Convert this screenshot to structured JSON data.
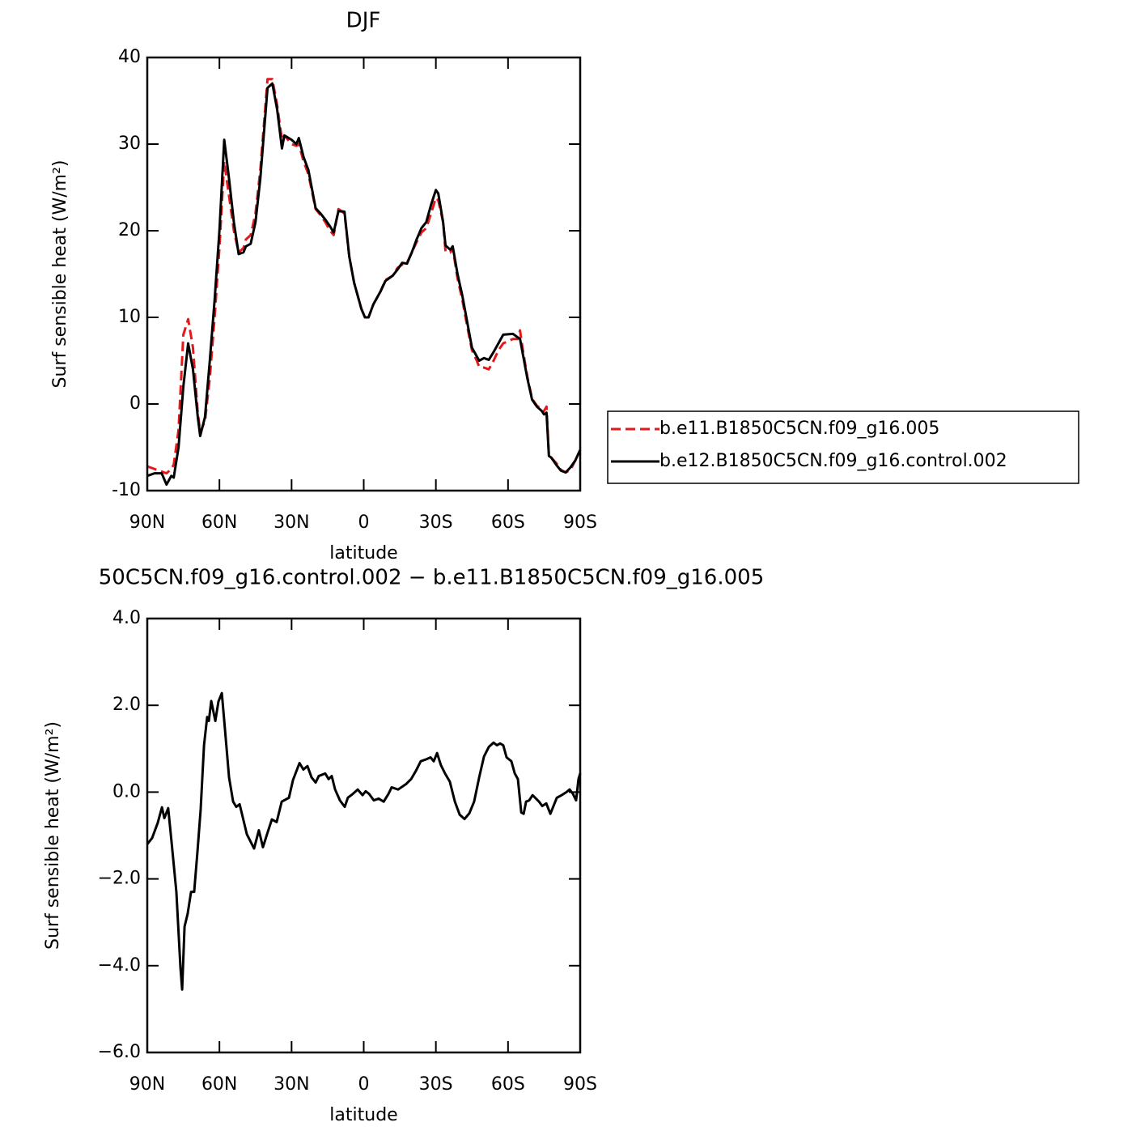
{
  "chart_data": [
    {
      "type": "line",
      "title": "DJF",
      "x_label": "latitude",
      "y_label": "Surf sensible heat (W/m²)",
      "xlim": [
        90,
        -90
      ],
      "xticks": [
        {
          "value": 90,
          "label": "90N"
        },
        {
          "value": 60,
          "label": "60N"
        },
        {
          "value": 30,
          "label": "30N"
        },
        0,
        {
          "value": -30,
          "label": "30S"
        },
        {
          "value": -60,
          "label": "60S"
        },
        {
          "value": -90,
          "label": "90S"
        }
      ],
      "ylim": [
        -10,
        40
      ],
      "yticks": [
        -10,
        0,
        10,
        20,
        30,
        40
      ],
      "legend": "right",
      "x": [
        90,
        87,
        84,
        82,
        80,
        79,
        77,
        75,
        73,
        71,
        69,
        68,
        66,
        64,
        62,
        60,
        58,
        56,
        54,
        52,
        50,
        49,
        47,
        45,
        43,
        41,
        40,
        38,
        36,
        34,
        33,
        30,
        28,
        27,
        25,
        23,
        20,
        18,
        16,
        14,
        12.5,
        10.5,
        8,
        6,
        4,
        3,
        1,
        -0.5,
        -2,
        -4,
        -7,
        -9,
        -12,
        -14,
        -16,
        -18,
        -20,
        -22,
        -24,
        -26,
        -28,
        -30,
        -31,
        -33,
        -34,
        -36,
        -37,
        -39,
        -41,
        -43,
        -45,
        -47,
        -48,
        -50,
        -52,
        -54,
        -56,
        -58,
        -62,
        -64,
        -65,
        -66,
        -68,
        -70,
        -72,
        -74,
        -75,
        -76,
        -77,
        -78,
        -80,
        -82,
        -84,
        -86,
        -88,
        -90
      ],
      "series": [
        {
          "name": "b.e11.B1850C5CN.f09_g16.005",
          "color": "#e31a1c",
          "dash": "dashed",
          "values": [
            -7.2,
            -7.5,
            -7.8,
            -8.0,
            -7.5,
            -7.0,
            -3,
            8,
            9.8,
            6.5,
            -1,
            -3.2,
            -2,
            3,
            10,
            18,
            28,
            24,
            20,
            17.5,
            18,
            19,
            19.5,
            22,
            27,
            34,
            37.5,
            37.5,
            34.5,
            30.5,
            31,
            30,
            29.8,
            30,
            28,
            26.5,
            22.5,
            21.8,
            21,
            20,
            19.5,
            22.5,
            22,
            17,
            14,
            13,
            11,
            10,
            10,
            11.5,
            13,
            14.3,
            14.8,
            15.7,
            16.1,
            16.3,
            17.5,
            18.7,
            19.8,
            20.3,
            22,
            23.8,
            23.5,
            21,
            17.6,
            17.5,
            18,
            14.5,
            12,
            9,
            6.2,
            5,
            4.3,
            4.2,
            4.0,
            5,
            6.2,
            7,
            7.5,
            7.5,
            8.5,
            6.5,
            3.2,
            0.6,
            -0.2,
            -0.6,
            -0.8,
            -0.3,
            -6,
            -6.2,
            -6.8,
            -7.6,
            -7.9,
            -7.6,
            -6.5,
            -5.3
          ]
        },
        {
          "name": "b.e12.B1850C5CN.f09_g16.control.002",
          "color": "#000000",
          "dash": "solid",
          "values": [
            -8.3,
            -8.0,
            -8.0,
            -9.3,
            -8.3,
            -8.5,
            -5,
            2,
            7,
            4,
            -1.5,
            -3.7,
            -1.5,
            5,
            12,
            20,
            30.5,
            26,
            21,
            17.3,
            17.5,
            18.2,
            18.5,
            21,
            26,
            33,
            36.5,
            37,
            34,
            29.5,
            31,
            30.5,
            30,
            30.7,
            28.5,
            27,
            22.6,
            22,
            21.3,
            20.5,
            19.8,
            22.3,
            22.2,
            17,
            14,
            13,
            11,
            10,
            10,
            11.5,
            13,
            14.2,
            14.8,
            15.5,
            16.3,
            16.2,
            17.5,
            19,
            20.3,
            21,
            23,
            24.7,
            24.3,
            21,
            18.3,
            17.8,
            18.2,
            15,
            12.5,
            9.5,
            6.5,
            5.5,
            5,
            5.3,
            5.1,
            6,
            7,
            8,
            8.1,
            7.7,
            7.5,
            6,
            3,
            0.5,
            -0.3,
            -0.8,
            -1.2,
            -1.0,
            -6,
            -6.2,
            -7,
            -7.7,
            -7.9,
            -7.3,
            -6.5,
            -5.3
          ]
        }
      ]
    },
    {
      "type": "line",
      "title": "50C5CN.f09_g16.control.002 − b.e11.B1850C5CN.f09_g16.005",
      "x_label": "latitude",
      "y_label": "Surf sensible heat (W/m²)",
      "xlim": [
        90,
        -90
      ],
      "xticks": [
        {
          "value": 90,
          "label": "90N"
        },
        {
          "value": 60,
          "label": "60N"
        },
        {
          "value": 30,
          "label": "30N"
        },
        0,
        {
          "value": -30,
          "label": "30S"
        },
        {
          "value": -60,
          "label": "60S"
        },
        {
          "value": -90,
          "label": "90S"
        }
      ],
      "ylim": [
        -6,
        4
      ],
      "yticks": [
        {
          "value": -6,
          "label": "−6.0"
        },
        {
          "value": -4,
          "label": "−4.0"
        },
        {
          "value": -2,
          "label": "−2.0"
        },
        {
          "value": 0,
          "label": "0.0"
        },
        {
          "value": 2,
          "label": "2.0"
        },
        {
          "value": 4,
          "label": "4.0"
        }
      ],
      "x": [
        90,
        88,
        85.6,
        83.9,
        82.9,
        81.3,
        79.9,
        77.9,
        76.2,
        75.5,
        74.5,
        73.2,
        71.8,
        70.5,
        69.1,
        67.8,
        66.4,
        65.1,
        64.4,
        63.4,
        61.7,
        60.4,
        59.0,
        57.7,
        56.0,
        54.3,
        53.0,
        51.6,
        48.6,
        45.6,
        43.6,
        41.9,
        40.2,
        38.2,
        36.2,
        34.1,
        31.1,
        29.4,
        26.7,
        25.1,
        23.4,
        21.7,
        20.0,
        18.7,
        16.0,
        14.6,
        13.3,
        11.9,
        9.9,
        7.9,
        6.6,
        4.5,
        2.5,
        0.5,
        -0.8,
        -2.2,
        -4.2,
        -6.2,
        -8.3,
        -10.3,
        -11.6,
        -14.3,
        -17.7,
        -19.7,
        -21.7,
        -23.7,
        -25.7,
        -27.8,
        -29.1,
        -30.5,
        -32.1,
        -33.8,
        -35.8,
        -37.9,
        -39.9,
        -41.9,
        -43.9,
        -45.9,
        -48.0,
        -50.0,
        -52.0,
        -54.0,
        -55.4,
        -56.7,
        -58.0,
        -59.4,
        -61.4,
        -62.8,
        -64.1,
        -65.5,
        -66.5,
        -67.5,
        -68.8,
        -70.2,
        -72.9,
        -74.2,
        -75.9,
        -77.6,
        -80.3,
        -82.3,
        -84.3,
        -85.6,
        -87.0,
        -88.3,
        -89.3,
        -90
      ],
      "series": [
        {
          "color": "#000000",
          "dash": "solid",
          "values": [
            -1.2,
            -1.06,
            -0.7,
            -0.35,
            -0.6,
            -0.37,
            -1.15,
            -2.3,
            -4.05,
            -4.55,
            -3.1,
            -2.8,
            -2.3,
            -2.3,
            -1.35,
            -0.4,
            1.08,
            1.73,
            1.64,
            2.1,
            1.64,
            2.09,
            2.28,
            1.45,
            0.34,
            -0.22,
            -0.34,
            -0.28,
            -0.97,
            -1.3,
            -0.88,
            -1.27,
            -0.97,
            -0.63,
            -0.69,
            -0.22,
            -0.13,
            0.28,
            0.67,
            0.52,
            0.6,
            0.34,
            0.22,
            0.37,
            0.43,
            0.3,
            0.37,
            0.06,
            -0.19,
            -0.34,
            -0.13,
            -0.04,
            0.06,
            -0.07,
            0.02,
            -0.04,
            -0.19,
            -0.15,
            -0.22,
            -0.04,
            0.11,
            0.06,
            0.19,
            0.3,
            0.49,
            0.71,
            0.75,
            0.8,
            0.71,
            0.9,
            0.62,
            0.43,
            0.24,
            -0.22,
            -0.52,
            -0.62,
            -0.49,
            -0.22,
            0.34,
            0.82,
            1.04,
            1.14,
            1.08,
            1.12,
            1.08,
            0.8,
            0.71,
            0.43,
            0.3,
            -0.47,
            -0.5,
            -0.22,
            -0.19,
            -0.07,
            -0.22,
            -0.32,
            -0.26,
            -0.5,
            -0.13,
            -0.07,
            0,
            0.06,
            -0.04,
            -0.19,
            0.3,
            0.43
          ]
        }
      ]
    }
  ]
}
